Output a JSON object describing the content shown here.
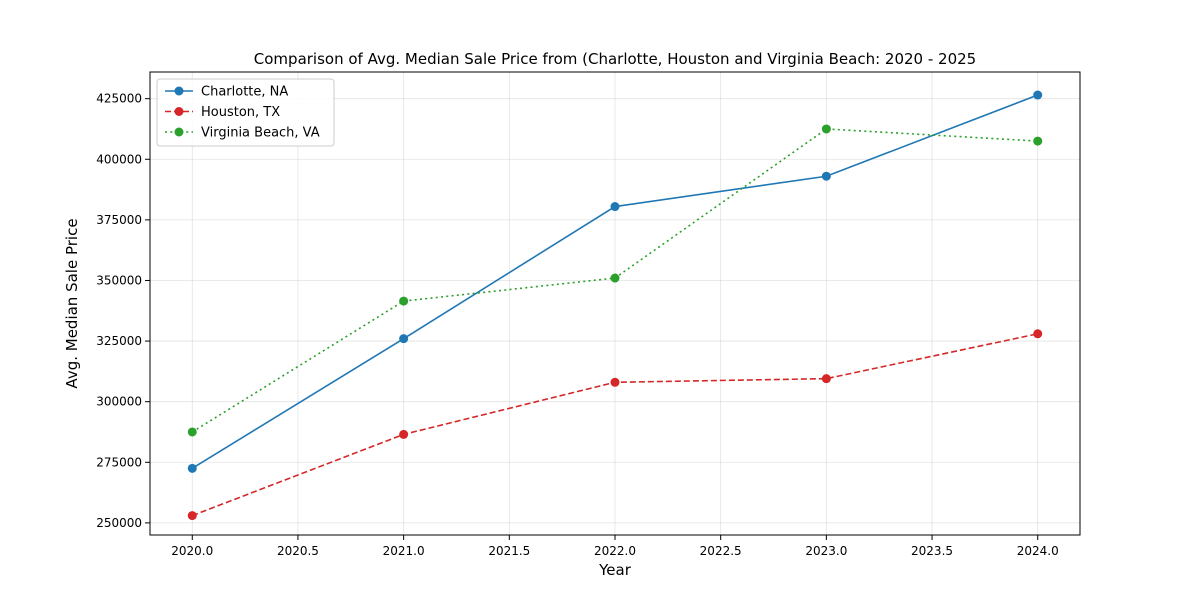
{
  "chart_data": {
    "type": "line",
    "title": "Comparison of Avg. Median Sale Price from (Charlotte, Houston and Virginia Beach: 2020 - 2025",
    "xlabel": "Year",
    "ylabel": "Avg. Median Sale Price",
    "x": [
      2020,
      2021,
      2022,
      2023,
      2024
    ],
    "xlim": [
      2019.8,
      2024.2
    ],
    "ylim": [
      245000,
      436000
    ],
    "xticks": [
      2020.0,
      2020.5,
      2021.0,
      2021.5,
      2022.0,
      2022.5,
      2023.0,
      2023.5,
      2024.0
    ],
    "xtick_labels": [
      "2020.0",
      "2020.5",
      "2021.0",
      "2021.5",
      "2022.0",
      "2022.5",
      "2023.0",
      "2023.5",
      "2024.0"
    ],
    "yticks": [
      250000,
      275000,
      300000,
      325000,
      350000,
      375000,
      400000,
      425000
    ],
    "ytick_labels": [
      "250000",
      "275000",
      "300000",
      "325000",
      "350000",
      "375000",
      "400000",
      "425000"
    ],
    "grid": true,
    "legend_position": "top-left",
    "series": [
      {
        "name": "Charlotte, NA",
        "color": "#1f77b4",
        "style": "solid",
        "values": [
          272500,
          326000,
          380500,
          393000,
          426500
        ]
      },
      {
        "name": "Houston, TX",
        "color": "#d62728",
        "style": "dashed",
        "values": [
          253000,
          286500,
          308000,
          309500,
          328000
        ]
      },
      {
        "name": "Virginia Beach, VA",
        "color": "#2ca02c",
        "style": "dotted",
        "values": [
          287500,
          341500,
          351000,
          412500,
          407500
        ]
      }
    ]
  }
}
